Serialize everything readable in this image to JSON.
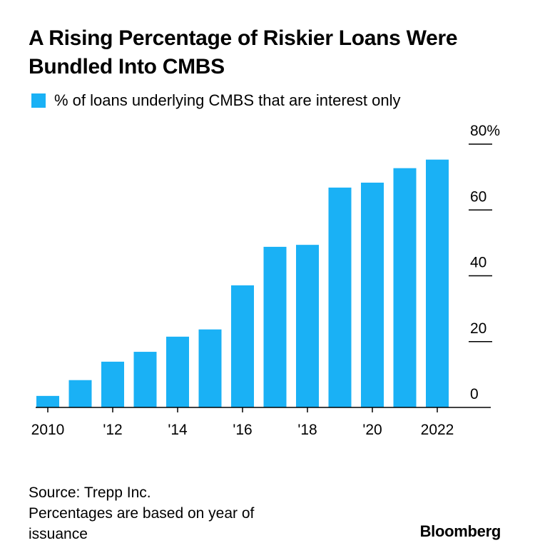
{
  "title": "A Rising Percentage of Riskier Loans Were Bundled Into CMBS",
  "legend": "% of loans underlying CMBS that are interest only",
  "colors": {
    "bar": "#1ab1f5",
    "axis": "#000000",
    "text": "#000000"
  },
  "chart_data": {
    "type": "bar",
    "title": "A Rising Percentage of Riskier Loans Were Bundled Into CMBS",
    "series": [
      {
        "name": "% of loans underlying CMBS that are interest only",
        "values": [
          3.5,
          8.3,
          13.9,
          16.9,
          21.5,
          23.7,
          37.1,
          48.8,
          49.4,
          66.8,
          68.3,
          72.7,
          75.3
        ]
      }
    ],
    "categories": [
      "2010",
      "2011",
      "2012",
      "2013",
      "2014",
      "2015",
      "2016",
      "2017",
      "2018",
      "2019",
      "2020",
      "2021",
      "2022"
    ],
    "x_tick_labels": [
      {
        "category": "2010",
        "label": "2010"
      },
      {
        "category": "2012",
        "label": "'12"
      },
      {
        "category": "2014",
        "label": "'14"
      },
      {
        "category": "2016",
        "label": "'16"
      },
      {
        "category": "2018",
        "label": "'18"
      },
      {
        "category": "2020",
        "label": "'20"
      },
      {
        "category": "2022",
        "label": "2022"
      }
    ],
    "y_ticks": [
      {
        "value": 0,
        "label": "0"
      },
      {
        "value": 20,
        "label": "20"
      },
      {
        "value": 40,
        "label": "40"
      },
      {
        "value": 60,
        "label": "60"
      },
      {
        "value": 80,
        "label": "80%"
      }
    ],
    "ylim": [
      0,
      80
    ],
    "y_axis_side": "right",
    "grid": false,
    "legend_position": "top-left",
    "xlabel": "",
    "ylabel": ""
  },
  "footer": {
    "source": "Source: Trepp Inc.",
    "note_line1": "Percentages are based on year of",
    "note_line2": "issuance"
  },
  "brand": "Bloomberg"
}
